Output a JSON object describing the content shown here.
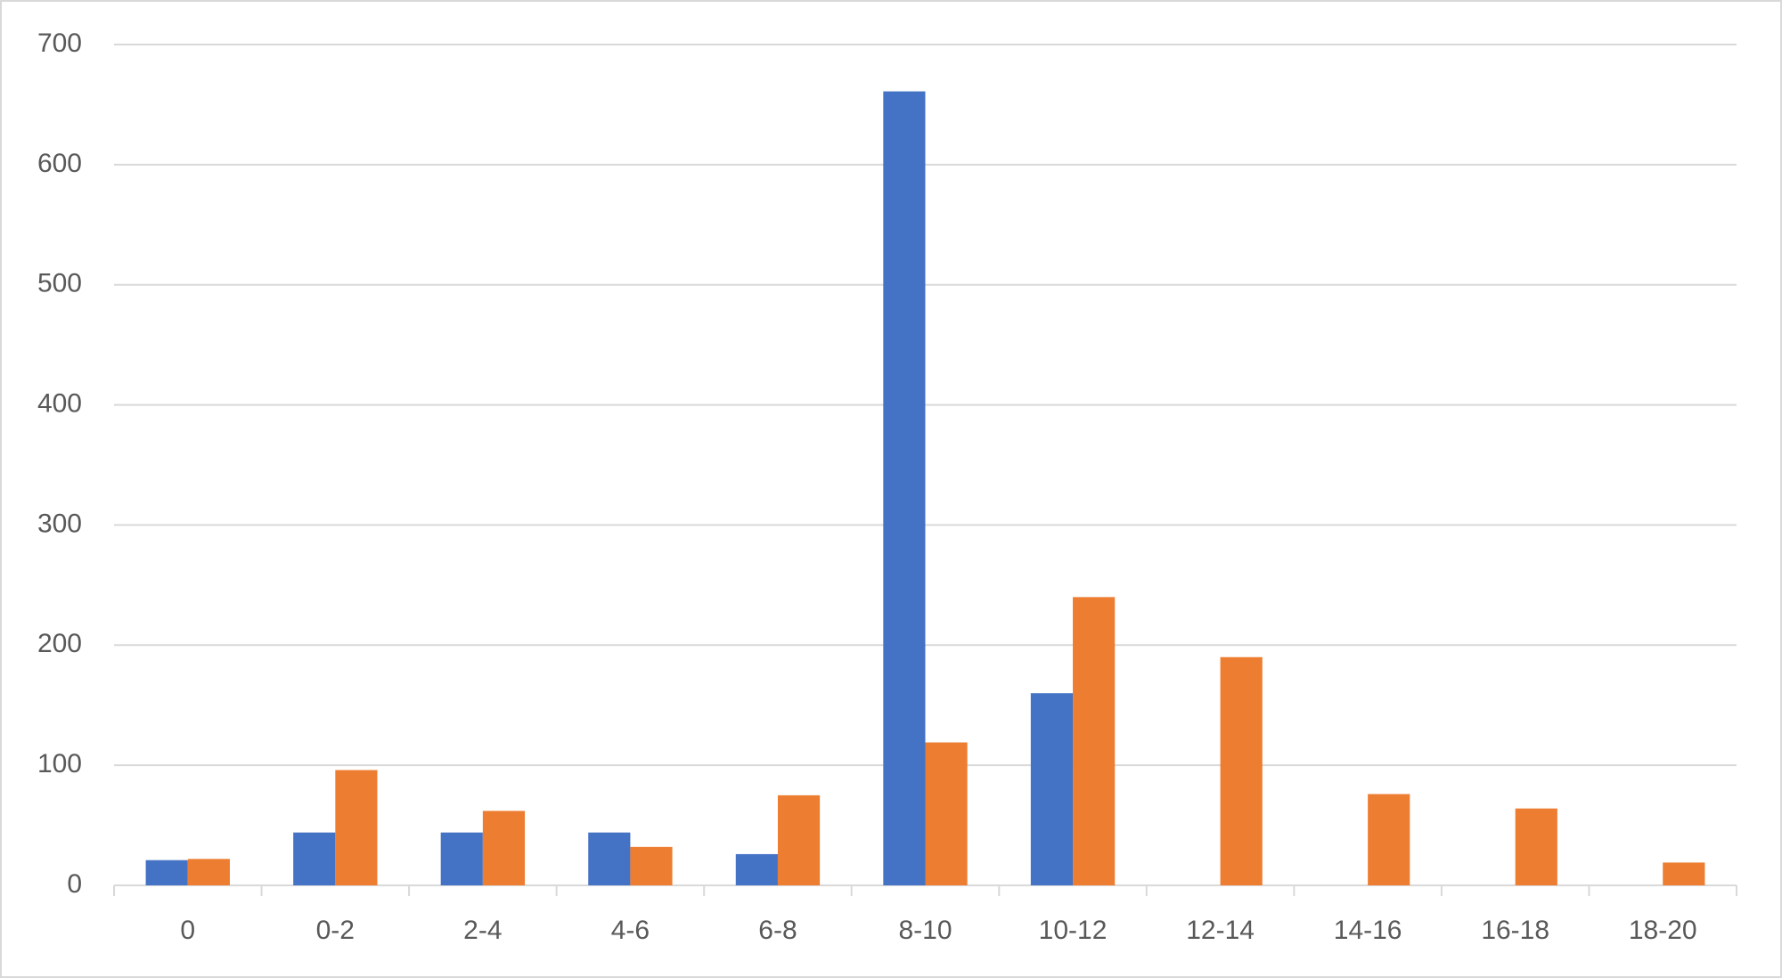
{
  "chart_data": {
    "type": "bar",
    "categories": [
      "0",
      "0-2",
      "2-4",
      "4-6",
      "6-8",
      "8-10",
      "10-12",
      "12-14",
      "14-16",
      "16-18",
      "18-20"
    ],
    "series": [
      {
        "color": "#4472c4",
        "values": [
          21,
          44,
          44,
          44,
          26,
          661,
          160,
          0,
          0,
          0,
          0
        ]
      },
      {
        "color": "#ed7d31",
        "values": [
          22,
          96,
          62,
          32,
          75,
          119,
          240,
          190,
          76,
          64,
          19
        ]
      }
    ],
    "ylim": [
      0,
      700
    ],
    "yticks": [
      0,
      100,
      200,
      300,
      400,
      500,
      600,
      700
    ],
    "grid": true
  }
}
